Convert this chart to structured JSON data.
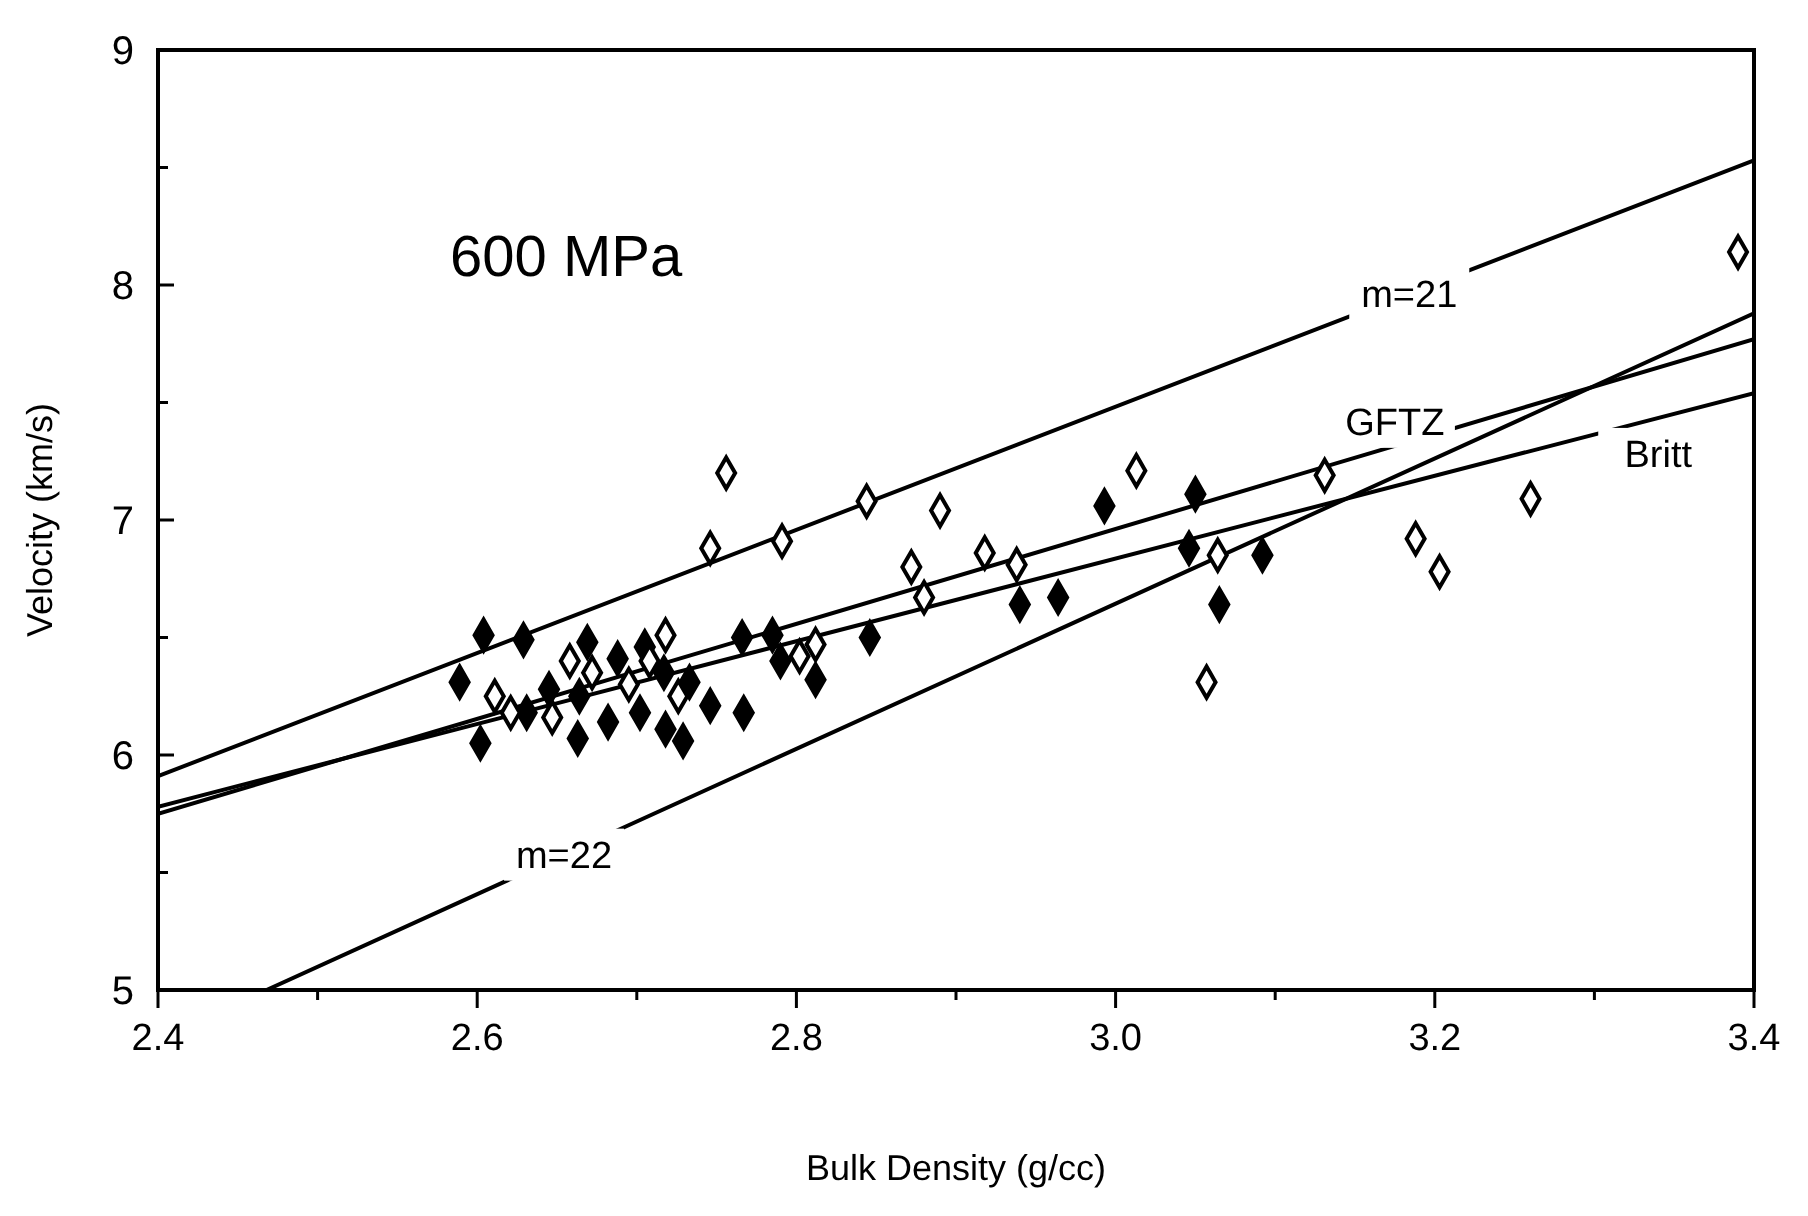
{
  "chart_data": {
    "type": "scatter",
    "xlabel": "Bulk Density (g/cc)",
    "ylabel": "Velocity (km/s)",
    "annotations": [
      "600 MPa"
    ],
    "xlim": [
      2.4,
      3.4
    ],
    "ylim": [
      5,
      9
    ],
    "xticks": [
      {
        "value": 2.4,
        "label": "2.4"
      },
      {
        "value": 2.5,
        "label": null
      },
      {
        "value": 2.6,
        "label": "2.6"
      },
      {
        "value": 2.7,
        "label": null
      },
      {
        "value": 2.8,
        "label": "2.8"
      },
      {
        "value": 2.9,
        "label": null
      },
      {
        "value": 3,
        "label": "3.0"
      },
      {
        "value": 3.1,
        "label": null
      },
      {
        "value": 3.2,
        "label": "3.2"
      },
      {
        "value": 3.3,
        "label": null
      },
      {
        "value": 3.4,
        "label": "3.4"
      }
    ],
    "yticks": [
      5,
      {
        "value": 5.5,
        "label": null
      },
      6,
      {
        "value": 6.5,
        "label": null
      },
      7,
      {
        "value": 7.5,
        "label": null
      },
      8,
      {
        "value": 8.5,
        "label": null
      },
      9
    ],
    "grid": false,
    "series": [
      {
        "type": "line",
        "name": "m=21",
        "color": "#000000",
        "x": [
          2.4,
          3.4
        ],
        "values": [
          5.91,
          8.53
        ]
      },
      {
        "type": "line",
        "name": "GFTZ",
        "color": "#000000",
        "x": [
          2.4,
          3.4
        ],
        "values": [
          5.75,
          7.77
        ]
      },
      {
        "type": "line",
        "name": "Britt",
        "color": "#000000",
        "x": [
          2.4,
          3.4
        ],
        "values": [
          5.78,
          7.54
        ]
      },
      {
        "type": "line",
        "name": "m=22",
        "color": "#000000",
        "x": [
          2.468,
          3.4
        ],
        "values": [
          5.0,
          7.88
        ]
      },
      {
        "marker": "diamond",
        "color": "#000000",
        "x": [
          2.589,
          2.604,
          2.629,
          2.602,
          2.669,
          2.663,
          2.682,
          2.702,
          2.718,
          2.729,
          2.733,
          2.746,
          2.717,
          2.705,
          2.688,
          2.645,
          2.664,
          2.631,
          2.766,
          2.785,
          2.79,
          2.812,
          2.767,
          2.846,
          2.94,
          2.964,
          2.993,
          3.05,
          3.046,
          3.092,
          3.065
        ],
        "values": [
          6.31,
          6.51,
          6.49,
          6.05,
          6.48,
          6.07,
          6.14,
          6.18,
          6.11,
          6.06,
          6.31,
          6.21,
          6.35,
          6.46,
          6.41,
          6.28,
          6.25,
          6.18,
          6.5,
          6.51,
          6.4,
          6.32,
          6.18,
          6.5,
          6.64,
          6.67,
          7.06,
          7.11,
          6.88,
          6.85,
          6.64
        ]
      },
      {
        "marker": "diamond",
        "color": "#ffffff",
        "x": [
          2.718,
          2.611,
          2.621,
          2.647,
          2.672,
          2.695,
          2.708,
          2.726,
          2.812,
          2.802,
          2.658,
          2.756,
          2.746,
          2.791,
          2.844,
          2.89,
          2.872,
          2.918,
          2.938,
          2.88,
          3.013,
          3.064,
          3.057,
          3.131,
          3.188,
          3.203,
          3.26,
          3.39
        ],
        "values": [
          6.51,
          6.25,
          6.18,
          6.16,
          6.35,
          6.3,
          6.4,
          6.25,
          6.47,
          6.42,
          6.4,
          7.2,
          6.88,
          6.91,
          7.08,
          7.04,
          6.8,
          6.86,
          6.81,
          6.67,
          7.21,
          6.85,
          6.31,
          7.19,
          6.92,
          6.78,
          7.09,
          8.14
        ]
      }
    ]
  }
}
